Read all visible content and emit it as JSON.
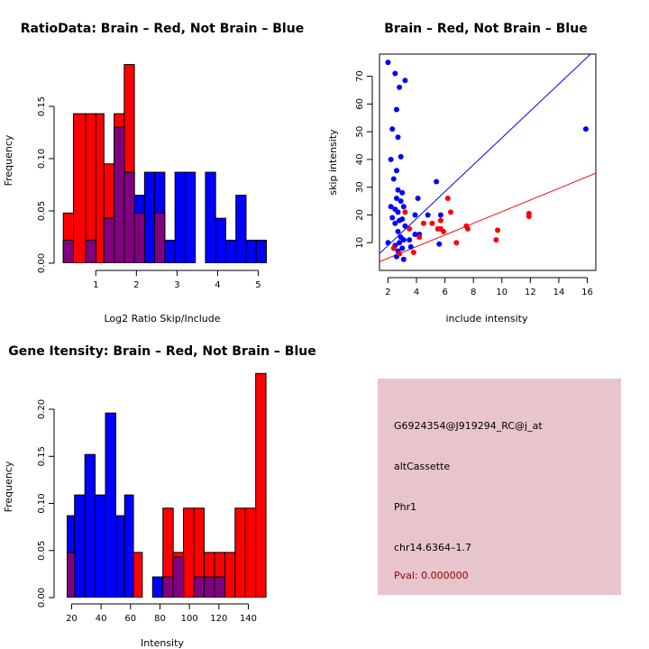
{
  "colors": {
    "brain": "#ff0000",
    "not_brain": "#0000ff",
    "overlap": "#800080",
    "panel_bg": "#e8c4cc",
    "pval": "#8b0000"
  },
  "chart_data": [
    {
      "id": "ratio_hist",
      "type": "bar",
      "title": "RatioData: Brain – Red, Not Brain – Blue",
      "xlabel": "Log2 Ratio Skip/Include",
      "ylabel": "Frequency",
      "xlim": [
        0.15,
        5.3
      ],
      "ylim": [
        0,
        0.2
      ],
      "xticks": [
        1,
        2,
        3,
        4,
        5
      ],
      "xtick_labels": [
        "1",
        "2",
        "3",
        "4",
        "5"
      ],
      "yticks": [
        0.0,
        0.05,
        0.1,
        0.15
      ],
      "ytick_labels": [
        "0.00",
        "0.05",
        "0.10",
        "0.15"
      ],
      "series": [
        {
          "name": "Brain",
          "bins": [
            [
              0.2,
              0.45,
              0.048
            ],
            [
              0.45,
              0.75,
              0.143
            ],
            [
              0.75,
              1.0,
              0.143
            ],
            [
              1.0,
              1.2,
              0.143
            ],
            [
              1.2,
              1.45,
              0.095
            ],
            [
              1.45,
              1.7,
              0.143
            ],
            [
              1.7,
              1.95,
              0.19
            ],
            [
              1.95,
              2.2,
              0.048
            ],
            [
              2.45,
              2.7,
              0.048
            ]
          ]
        },
        {
          "name": "Not Brain",
          "bins": [
            [
              0.2,
              0.45,
              0.022
            ],
            [
              0.75,
              1.0,
              0.022
            ],
            [
              1.2,
              1.45,
              0.043
            ],
            [
              1.45,
              1.7,
              0.13
            ],
            [
              1.7,
              1.95,
              0.087
            ],
            [
              1.95,
              2.2,
              0.065
            ],
            [
              2.2,
              2.45,
              0.087
            ],
            [
              2.45,
              2.7,
              0.087
            ],
            [
              2.7,
              2.95,
              0.022
            ],
            [
              2.95,
              3.2,
              0.087
            ],
            [
              3.2,
              3.45,
              0.087
            ],
            [
              3.7,
              3.95,
              0.087
            ],
            [
              3.95,
              4.2,
              0.043
            ],
            [
              4.2,
              4.45,
              0.022
            ],
            [
              4.45,
              4.7,
              0.065
            ],
            [
              4.7,
              4.95,
              0.022
            ],
            [
              4.95,
              5.2,
              0.022
            ]
          ]
        }
      ]
    },
    {
      "id": "skip_scatter",
      "type": "scatter",
      "title": "Brain – Red, Not Brain – Blue",
      "xlabel": "include intensity",
      "ylabel": "skip intensity",
      "xlim": [
        1.4,
        16.6
      ],
      "ylim": [
        0,
        78
      ],
      "xticks": [
        2,
        4,
        6,
        8,
        10,
        12,
        14,
        16
      ],
      "xtick_labels": [
        "2",
        "4",
        "6",
        "8",
        "10",
        "12",
        "14",
        "16"
      ],
      "yticks": [
        10,
        20,
        30,
        40,
        50,
        60,
        70
      ],
      "ytick_labels": [
        "10",
        "20",
        "30",
        "40",
        "50",
        "60",
        "70"
      ],
      "series": [
        {
          "name": "Not Brain",
          "points": [
            [
              2.0,
              75
            ],
            [
              2.5,
              71
            ],
            [
              2.8,
              66
            ],
            [
              3.2,
              68.5
            ],
            [
              2.3,
              51
            ],
            [
              2.6,
              58
            ],
            [
              2.7,
              48
            ],
            [
              2.2,
              40
            ],
            [
              2.9,
              41
            ],
            [
              2.6,
              36
            ],
            [
              2.4,
              33
            ],
            [
              2.7,
              29
            ],
            [
              3.0,
              28
            ],
            [
              2.6,
              26
            ],
            [
              2.9,
              25
            ],
            [
              3.1,
              23
            ],
            [
              2.5,
              22
            ],
            [
              2.7,
              21
            ],
            [
              2.3,
              19
            ],
            [
              2.8,
              18
            ],
            [
              3.0,
              18.5
            ],
            [
              2.5,
              17
            ],
            [
              3.2,
              16
            ],
            [
              2.7,
              14
            ],
            [
              2.9,
              12
            ],
            [
              3.1,
              11
            ],
            [
              2.8,
              10
            ],
            [
              2.5,
              9
            ],
            [
              3.0,
              8
            ],
            [
              2.7,
              7
            ],
            [
              2.6,
              5
            ],
            [
              3.1,
              4
            ],
            [
              2.0,
              10
            ],
            [
              3.5,
              11
            ],
            [
              3.9,
              13
            ],
            [
              4.2,
              13
            ],
            [
              4.1,
              26
            ],
            [
              3.9,
              20
            ],
            [
              4.8,
              20
            ],
            [
              5.4,
              32
            ],
            [
              5.7,
              20
            ],
            [
              5.6,
              9.5
            ],
            [
              15.9,
              51
            ],
            [
              3.6,
              8.5
            ],
            [
              2.2,
              23
            ]
          ]
        },
        {
          "name": "Brain",
          "points": [
            [
              2.4,
              8
            ],
            [
              2.8,
              6
            ],
            [
              3.2,
              21
            ],
            [
              3.5,
              15
            ],
            [
              3.8,
              6.5
            ],
            [
              4.2,
              12
            ],
            [
              4.5,
              17
            ],
            [
              5.1,
              17
            ],
            [
              5.5,
              15
            ],
            [
              5.7,
              15
            ],
            [
              5.9,
              14
            ],
            [
              6.2,
              26
            ],
            [
              6.4,
              21
            ],
            [
              6.8,
              10
            ],
            [
              7.5,
              16
            ],
            [
              7.6,
              15
            ],
            [
              9.6,
              11
            ],
            [
              9.7,
              14.5
            ],
            [
              11.9,
              19.5
            ],
            [
              11.9,
              20.5
            ],
            [
              5.7,
              18
            ]
          ]
        }
      ],
      "fit_lines": [
        {
          "name": "Not Brain fit",
          "slope": 4.85,
          "intercept": -0.7
        },
        {
          "name": "Brain fit",
          "slope": 2.1,
          "intercept": 0.2
        }
      ]
    },
    {
      "id": "intensity_hist",
      "type": "bar",
      "title": "Gene Itensity: Brain – Red, Not Brain – Blue",
      "xlabel": "Intensity",
      "ylabel": "Frequency",
      "xlim": [
        13,
        155
      ],
      "ylim": [
        0,
        0.245
      ],
      "xticks": [
        20,
        40,
        60,
        80,
        100,
        120,
        140
      ],
      "xtick_labels": [
        "20",
        "40",
        "60",
        "80",
        "100",
        "120",
        "140"
      ],
      "yticks": [
        0.0,
        0.05,
        0.1,
        0.15,
        0.2
      ],
      "ytick_labels": [
        "0.00",
        "0.05",
        "0.10",
        "0.15",
        "0.20"
      ],
      "series": [
        {
          "name": "Brain",
          "bins": [
            [
              17,
              22,
              0.048
            ],
            [
              62,
              68,
              0.048
            ],
            [
              82,
              89,
              0.095
            ],
            [
              89,
              96,
              0.048
            ],
            [
              96,
              103,
              0.095
            ],
            [
              103,
              110,
              0.095
            ],
            [
              110,
              117,
              0.048
            ],
            [
              117,
              124,
              0.048
            ],
            [
              124,
              131,
              0.048
            ],
            [
              131,
              138,
              0.095
            ],
            [
              138,
              145,
              0.095
            ],
            [
              145,
              152,
              0.238
            ]
          ]
        },
        {
          "name": "Not Brain",
          "bins": [
            [
              17,
              22,
              0.087
            ],
            [
              22,
              29,
              0.109
            ],
            [
              29,
              36,
              0.152
            ],
            [
              36,
              43,
              0.109
            ],
            [
              43,
              50,
              0.196
            ],
            [
              50,
              56,
              0.087
            ],
            [
              56,
              62,
              0.109
            ],
            [
              75,
              82,
              0.022
            ],
            [
              82,
              89,
              0.022
            ],
            [
              89,
              96,
              0.043
            ],
            [
              103,
              110,
              0.022
            ],
            [
              110,
              117,
              0.022
            ],
            [
              117,
              124,
              0.022
            ]
          ]
        }
      ]
    }
  ],
  "info_panel": {
    "probe_id": "G6924354@J919294_RC@j_at",
    "event_type": "altCassette",
    "gene": "Phr1",
    "location": "chr14.6364–1.7",
    "pval": "Pval: 0.000000"
  }
}
